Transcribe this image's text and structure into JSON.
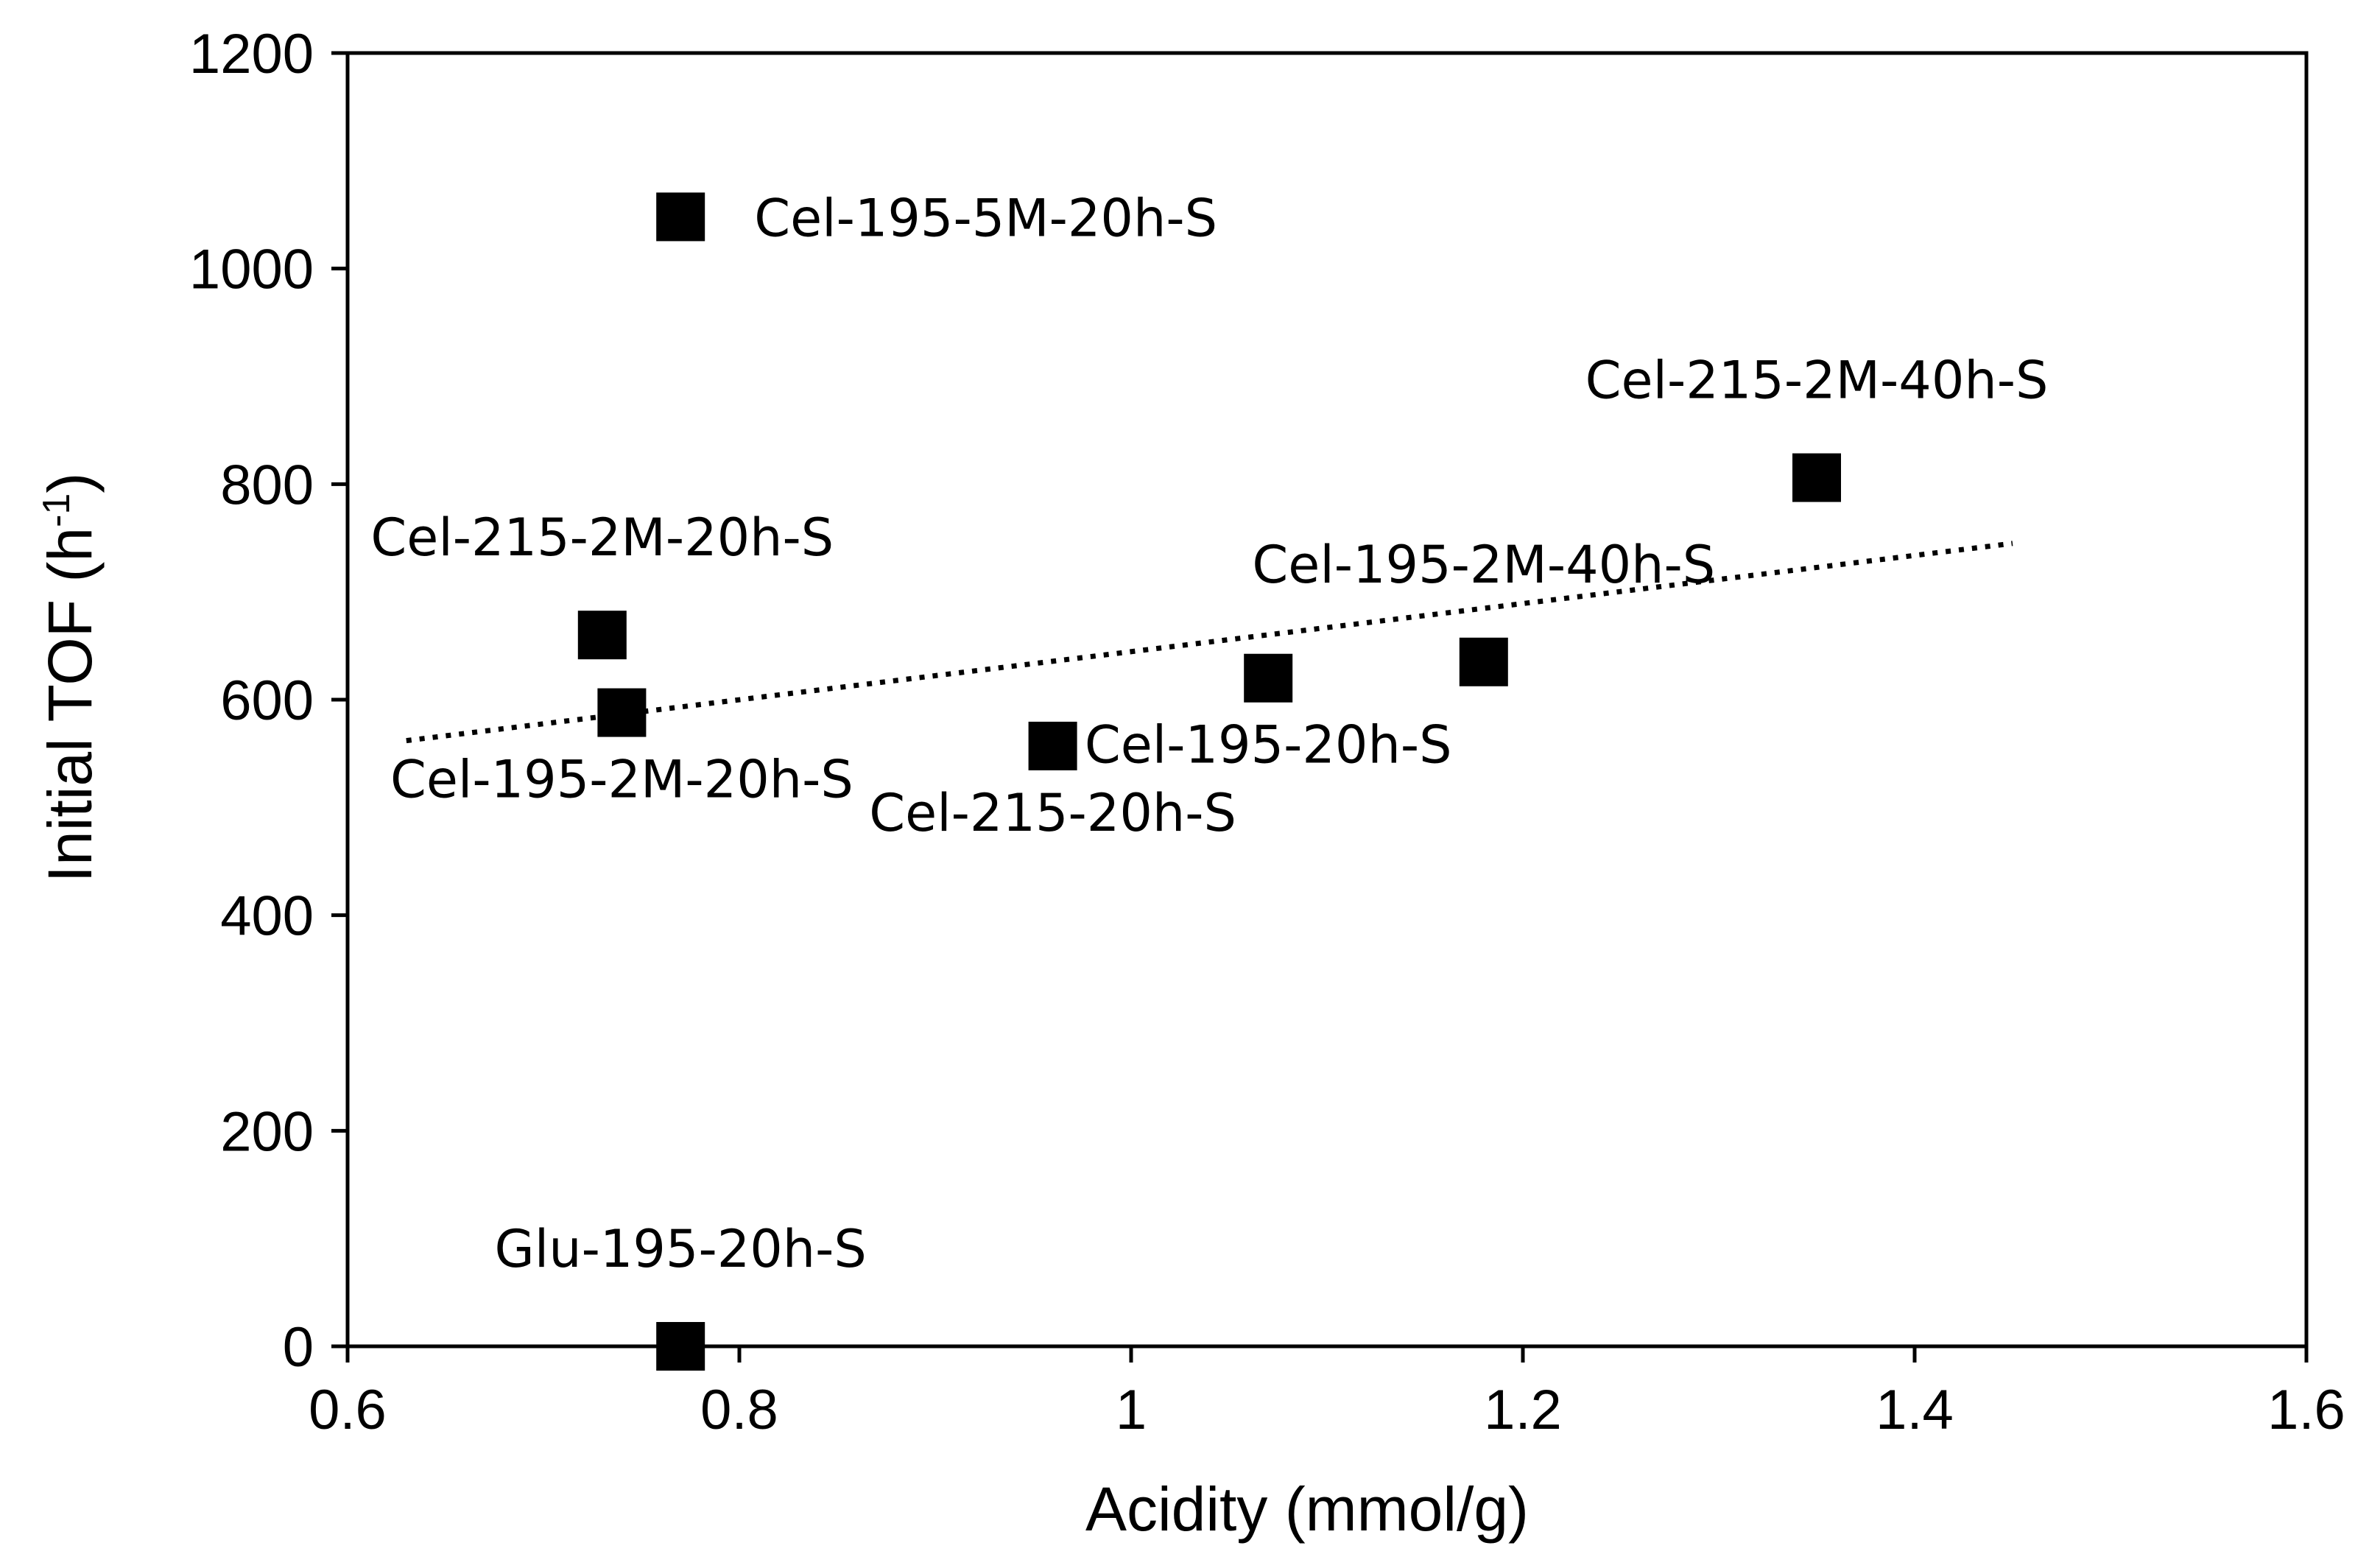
{
  "chart_data": {
    "type": "scatter",
    "title": "",
    "xlabel": "Acidity (mmol/g)",
    "ylabel_main": "Initial TOF (h",
    "ylabel_sup": "-1",
    "ylabel_end": ")",
    "xlim": [
      0.6,
      1.6
    ],
    "ylim": [
      0,
      1200
    ],
    "xticks": [
      0.6,
      0.8,
      1.0,
      1.2,
      1.4,
      1.6
    ],
    "xtick_labels": [
      "0.6",
      "0.8",
      "1",
      "1.2",
      "1.4",
      "1.6"
    ],
    "yticks": [
      0,
      200,
      400,
      600,
      800,
      1000,
      1200
    ],
    "ytick_labels": [
      "0",
      "200",
      "400",
      "600",
      "800",
      "1000",
      "1200"
    ],
    "grid": false,
    "legend": "none",
    "marker_color": "#000000",
    "points": [
      {
        "label": "Cel-195-5M-20h-S",
        "x": 0.77,
        "y": 1048,
        "label_pos": "right"
      },
      {
        "label": "Cel-215-2M-40h-S",
        "x": 1.35,
        "y": 806,
        "label_pos": "above"
      },
      {
        "label": "Cel-215-2M-20h-S",
        "x": 0.73,
        "y": 660,
        "label_pos": "above"
      },
      {
        "label": "Cel-195-2M-20h-S",
        "x": 0.74,
        "y": 588,
        "label_pos": "below"
      },
      {
        "label": "Cel-215-20h-S",
        "x": 0.96,
        "y": 557,
        "label_pos": "below"
      },
      {
        "label": "Cel-195-20h-S",
        "x": 1.07,
        "y": 620,
        "label_pos": "below"
      },
      {
        "label": "Cel-195-2M-40h-S",
        "x": 1.18,
        "y": 635,
        "label_pos": "above"
      },
      {
        "label": "Glu-195-20h-S",
        "x": 0.77,
        "y": 0,
        "label_pos": "above"
      }
    ],
    "trendline": {
      "style": "dotted",
      "x": [
        0.63,
        1.45
      ],
      "y": [
        562,
        745
      ]
    }
  }
}
